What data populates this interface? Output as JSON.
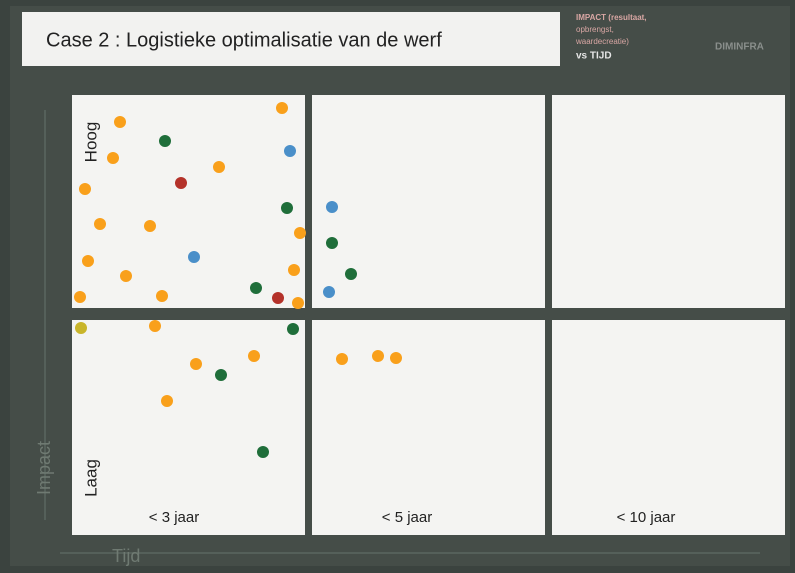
{
  "header": {
    "title": "Case 2 : Logistieke optimalisatie van de werf",
    "legend": [
      "IMPACT (resultaat,",
      "opbrengst,",
      "waardecreatie)",
      "vs TIJD"
    ],
    "logo": "DIMINFRA"
  },
  "axes": {
    "y_label": "Impact",
    "x_label": "Tijd",
    "y_high": "Hoog",
    "y_low": "Laag"
  },
  "columns": [
    "< 3 jaar",
    "< 5 jaar",
    "< 10 jaar"
  ]
}
